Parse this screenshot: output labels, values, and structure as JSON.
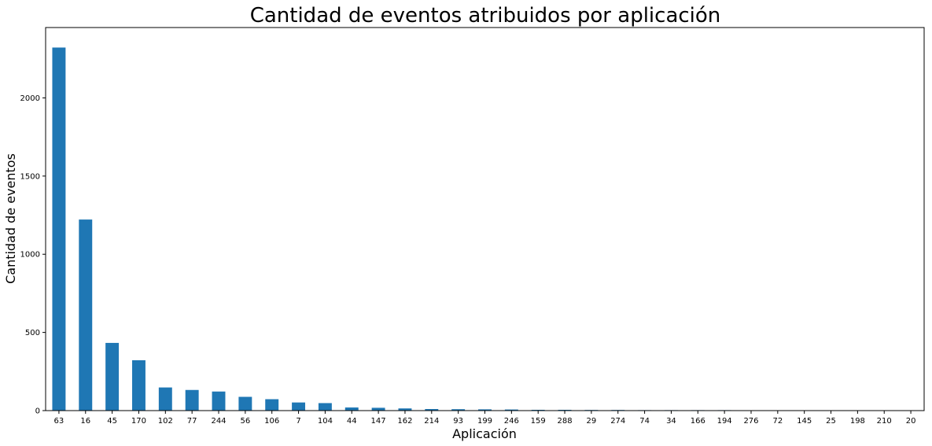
{
  "chart_data": {
    "type": "bar",
    "title": "Cantidad de eventos atribuidos por aplicación",
    "xlabel": "Aplicación",
    "ylabel": "Cantidad de eventos",
    "ylim": [
      0,
      2450
    ],
    "yticks": [
      0,
      500,
      1000,
      1500,
      2000
    ],
    "grid": false,
    "bar_color": "#1f77b4",
    "categories": [
      "63",
      "16",
      "45",
      "170",
      "102",
      "77",
      "244",
      "56",
      "106",
      "7",
      "104",
      "44",
      "147",
      "162",
      "214",
      "93",
      "199",
      "246",
      "159",
      "288",
      "29",
      "274",
      "74",
      "34",
      "166",
      "194",
      "276",
      "72",
      "145",
      "25",
      "198",
      "210",
      "20"
    ],
    "values": [
      2322,
      1222,
      433,
      322,
      148,
      132,
      122,
      88,
      73,
      52,
      48,
      20,
      18,
      14,
      10,
      9,
      8,
      7,
      5,
      5,
      4,
      4,
      3,
      3,
      3,
      3,
      2,
      2,
      1,
      1,
      1,
      1,
      1
    ]
  }
}
